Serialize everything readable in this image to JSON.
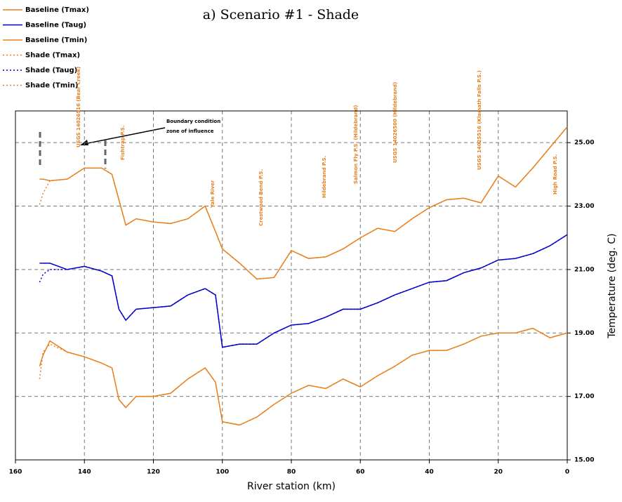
{
  "chart_data": {
    "type": "line",
    "title": "a) Scenario #1 - Shade",
    "x_label": "River station (km)",
    "y_label": "Temperature (deg. C)",
    "x": [
      153,
      152,
      150,
      145,
      140,
      135,
      132,
      130,
      128,
      125,
      120,
      115,
      110,
      105,
      102,
      100,
      95,
      90,
      85,
      80,
      75,
      70,
      65,
      60,
      55,
      50,
      45,
      40,
      35,
      30,
      25,
      20,
      15,
      10,
      5,
      0
    ],
    "series": [
      {
        "name": "Baseline (Tmax)",
        "color": "#e8801e",
        "style": "solid",
        "values": [
          23.85,
          23.85,
          23.8,
          23.85,
          24.2,
          24.2,
          24.0,
          23.2,
          22.4,
          22.6,
          22.5,
          22.45,
          22.6,
          23.0,
          22.2,
          21.65,
          21.2,
          20.7,
          20.75,
          21.6,
          21.35,
          21.4,
          21.65,
          22.0,
          22.3,
          22.2,
          22.6,
          22.95,
          23.2,
          23.25,
          23.1,
          23.95,
          23.6,
          24.2,
          24.85,
          25.5
        ]
      },
      {
        "name": "Baseline (Taug)",
        "color": "#0000cc",
        "style": "solid",
        "values": [
          21.2,
          21.2,
          21.2,
          21.0,
          21.1,
          20.95,
          20.8,
          19.75,
          19.4,
          19.75,
          19.8,
          19.85,
          20.2,
          20.4,
          20.2,
          18.55,
          18.65,
          18.65,
          19.0,
          19.25,
          19.3,
          19.5,
          19.75,
          19.75,
          19.95,
          20.2,
          20.4,
          20.6,
          20.65,
          20.9,
          21.05,
          21.3,
          21.35,
          21.5,
          21.75,
          22.1
        ]
      },
      {
        "name": "Baseline (Tmin)",
        "color": "#e8801e",
        "style": "solid",
        "values": [
          17.95,
          18.3,
          18.75,
          18.4,
          18.25,
          18.05,
          17.9,
          16.9,
          16.65,
          17.0,
          17.0,
          17.1,
          17.55,
          17.9,
          17.45,
          16.2,
          16.1,
          16.35,
          16.75,
          17.1,
          17.35,
          17.25,
          17.55,
          17.3,
          17.65,
          17.95,
          18.3,
          18.45,
          18.45,
          18.65,
          18.9,
          19.0,
          19.0,
          19.15,
          18.85,
          19.0
        ]
      },
      {
        "name": "Shade (Tmax)",
        "color": "#e8801e",
        "style": "dotted",
        "values": [
          23.05,
          23.4,
          23.8,
          23.85,
          24.2,
          24.2,
          24.0,
          23.2,
          22.4,
          22.6,
          22.5,
          22.45,
          22.6,
          23.0,
          22.2,
          21.65,
          21.2,
          20.7,
          20.75,
          21.6,
          21.35,
          21.4,
          21.65,
          22.0,
          22.3,
          22.2,
          22.6,
          22.95,
          23.2,
          23.25,
          23.1,
          23.95,
          23.6,
          24.2,
          24.85,
          25.5
        ]
      },
      {
        "name": "Shade (Taug)",
        "color": "#0000cc",
        "style": "dotted",
        "values": [
          20.6,
          20.85,
          21.0,
          21.0,
          21.1,
          20.95,
          20.8,
          19.75,
          19.4,
          19.75,
          19.8,
          19.85,
          20.2,
          20.4,
          20.2,
          18.55,
          18.65,
          18.65,
          19.0,
          19.25,
          19.3,
          19.5,
          19.75,
          19.75,
          19.95,
          20.2,
          20.4,
          20.6,
          20.65,
          20.9,
          21.05,
          21.3,
          21.35,
          21.5,
          21.75,
          22.1
        ]
      },
      {
        "name": "Shade (Tmin)",
        "color": "#e8801e",
        "style": "dotted",
        "values": [
          17.55,
          18.4,
          18.65,
          18.4,
          18.25,
          18.05,
          17.9,
          16.9,
          16.65,
          17.0,
          17.0,
          17.1,
          17.55,
          17.9,
          17.45,
          16.2,
          16.1,
          16.35,
          16.75,
          17.1,
          17.35,
          17.25,
          17.55,
          17.3,
          17.65,
          17.95,
          18.3,
          18.45,
          18.45,
          18.65,
          18.9,
          19.0,
          19.0,
          19.15,
          18.85,
          19.0
        ]
      }
    ],
    "xlim": [
      160,
      0
    ],
    "xticks": [
      160,
      140,
      120,
      100,
      80,
      60,
      40,
      20,
      0
    ],
    "ylim": [
      15,
      26
    ],
    "yticks": [
      {
        "value": 15,
        "label": "15.00"
      },
      {
        "value": 17,
        "label": "17.00"
      },
      {
        "value": 19,
        "label": "19.00"
      },
      {
        "value": 21,
        "label": "21.00"
      },
      {
        "value": 23,
        "label": "23.00"
      },
      {
        "value": 25,
        "label": "25.00"
      }
    ],
    "grid": true,
    "y_axis_side": "right",
    "legend_position": "top-left",
    "annotations": [
      "USGS 14026516 (Bear Creek)",
      "Fishtrap P.S.",
      "Yale River",
      "Crestwood Bend P.S.",
      "Hildebrand P.S.",
      "Salmon Fly P.S. (Hildebrand)",
      "USGS 14026500 (Hildebrand)",
      "USGS 14025516 (Klamath Falls P.S.)",
      "High Road P.S.",
      "Boundary condition",
      "zone of influence"
    ]
  }
}
